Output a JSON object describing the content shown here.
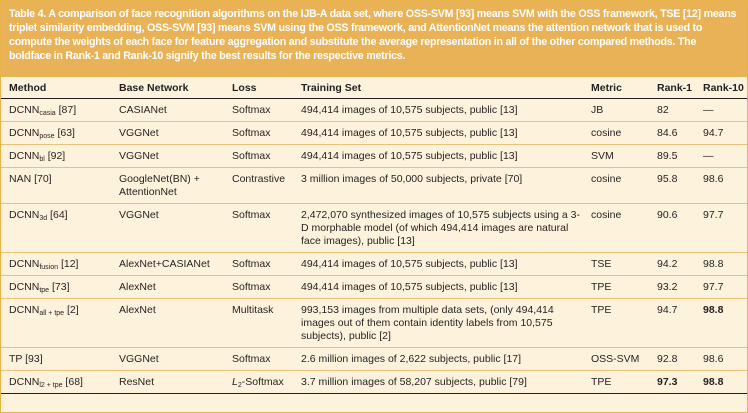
{
  "caption": "Table 4. A comparison of face recognition algorithms on the IJB-A data set, where OSS-SVM [93] means SVM with the OSS framework, TSE [12] means triplet similarity embedding, OSS-SVM [93] means SVM using the OSS framework, and AttentionNet means the attention network that is used to compute the weights of each face for feature aggregation and substitute the average representation in all of the other compared methods. The boldface in Rank-1 and Rank-10 signify the best results for the respective metrics.",
  "headers": {
    "method": "Method",
    "base_network": "Base Network",
    "loss": "Loss",
    "training_set": "Training Set",
    "metric": "Metric",
    "rank1": "Rank-1",
    "rank10": "Rank-10"
  },
  "rows": [
    {
      "method_main": "DCNN",
      "method_sub": "casia",
      "method_ref": " [87]",
      "base_network": "CASIANet",
      "loss_main": "Softmax",
      "loss_sub": "",
      "training_set": "494,414 images of 10,575 subjects, public [13]",
      "metric": "JB",
      "rank1": "82",
      "rank10": "—"
    },
    {
      "method_main": "DCNN",
      "method_sub": "pose",
      "method_ref": " [63]",
      "base_network": "VGGNet",
      "loss_main": "Softmax",
      "loss_sub": "",
      "training_set": "494,414 images of 10,575 subjects, public [13]",
      "metric": "cosine",
      "rank1": "84.6",
      "rank10": "94.7"
    },
    {
      "method_main": "DCNN",
      "method_sub": "bl",
      "method_ref": " [92]",
      "base_network": "VGGNet",
      "loss_main": "Softmax",
      "loss_sub": "",
      "training_set": "494,414 images of 10,575 subjects, public [13]",
      "metric": "SVM",
      "rank1": "89.5",
      "rank10": "—"
    },
    {
      "method_main": "NAN [70]",
      "method_sub": "",
      "method_ref": "",
      "base_network": "GoogleNet(BN) + AttentionNet",
      "loss_main": "Contrastive",
      "loss_sub": "",
      "training_set": "3 million images of 50,000 subjects, private [70]",
      "metric": "cosine",
      "rank1": "95.8",
      "rank10": "98.6"
    },
    {
      "method_main": "DCNN",
      "method_sub": "3d",
      "method_ref": " [64]",
      "base_network": "VGGNet",
      "loss_main": "Softmax",
      "loss_sub": "",
      "training_set": "2,472,070 synthesized images of 10,575 subjects using a 3-D morphable model (of which 494,414 images are natural face images), public [13]",
      "metric": "cosine",
      "rank1": "90.6",
      "rank10": "97.7"
    },
    {
      "method_main": "DCNN",
      "method_sub": "fusion",
      "method_ref": " [12]",
      "base_network": "AlexNet+CASIANet",
      "loss_main": "Softmax",
      "loss_sub": "",
      "training_set": "494,414 images of 10,575 subjects, public [13]",
      "metric": "TSE",
      "rank1": "94.2",
      "rank10": "98.8"
    },
    {
      "method_main": "DCNN",
      "method_sub": "tpe",
      "method_ref": " [73]",
      "base_network": "AlexNet",
      "loss_main": "Softmax",
      "loss_sub": "",
      "training_set": "494,414 images of 10,575 subjects, public [13]",
      "metric": "TPE",
      "rank1": "93.2",
      "rank10": "97.7"
    },
    {
      "method_main": "DCNN",
      "method_sub": "all + tpe",
      "method_ref": " [2]",
      "base_network": "AlexNet",
      "loss_main": "Multitask",
      "loss_sub": "",
      "training_set": "993,153 images from multiple data sets, (only 494,414 images out of them contain identity labels from 10,575 subjects), public [2]",
      "metric": "TPE",
      "rank1": "94.7",
      "rank10": "98.8"
    },
    {
      "method_main": "TP [93]",
      "method_sub": "",
      "method_ref": "",
      "base_network": "VGGNet",
      "loss_main": "Softmax",
      "loss_sub": "",
      "training_set": "2.6 million images of 2,622 subjects, public [17]",
      "metric": "OSS-SVM",
      "rank1": "92.8",
      "rank10": "98.6"
    },
    {
      "method_main": "DCNN",
      "method_sub": "l2 + tpe",
      "method_ref": " [68]",
      "base_network": "ResNet",
      "loss_main": "L",
      "loss_sub": "2",
      "loss_tail": "-Softmax",
      "training_set": "3.7 million images of 58,207 subjects, public [79]",
      "metric": "TPE",
      "rank1": "97.3",
      "rank10": "98.8"
    }
  ],
  "bold": {
    "rank1_row": 9,
    "rank10_rows": [
      7,
      9
    ]
  },
  "colors": {
    "caption_bg": "#eab256",
    "table_bg": "#fdf3dc",
    "rule": "#e9c27a"
  }
}
